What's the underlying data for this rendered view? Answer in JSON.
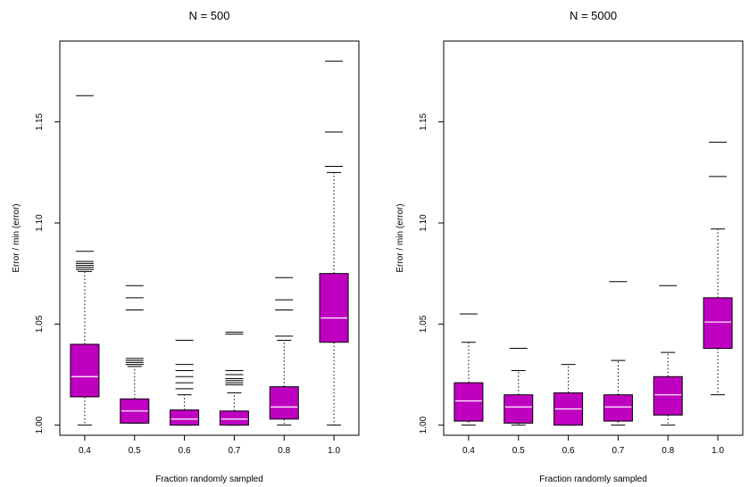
{
  "colors": {
    "box": "#c000c0",
    "median": "#ffffff",
    "stroke": "#000000"
  },
  "chart_data": [
    {
      "type": "boxplot",
      "title": "N = 500",
      "xlabel": "Fraction randomly sampled",
      "ylabel": "Error / min (error)",
      "ylim": [
        0.995,
        1.19
      ],
      "yticks": [
        1.0,
        1.05,
        1.1,
        1.15
      ],
      "ytick_labels": [
        "1.00",
        "1.05",
        "1.10",
        "1.15"
      ],
      "categories": [
        "0.4",
        "0.5",
        "0.6",
        "0.7",
        "0.8",
        "1.0"
      ],
      "boxes": [
        {
          "low": 1.0,
          "q1": 1.014,
          "median": 1.024,
          "q3": 1.04,
          "high": 1.076,
          "outliers": [
            1.077,
            1.078,
            1.079,
            1.08,
            1.081,
            1.086,
            1.163
          ]
        },
        {
          "low": 1.001,
          "q1": 1.001,
          "median": 1.007,
          "q3": 1.013,
          "high": 1.029,
          "outliers": [
            1.03,
            1.031,
            1.032,
            1.033,
            1.057,
            1.063,
            1.069
          ]
        },
        {
          "low": 1.0,
          "q1": 1.0,
          "median": 1.003,
          "q3": 1.0075,
          "high": 1.015,
          "outliers": [
            1.018,
            1.021,
            1.024,
            1.027,
            1.03,
            1.042
          ]
        },
        {
          "low": 1.0,
          "q1": 1.0,
          "median": 1.003,
          "q3": 1.007,
          "high": 1.016,
          "outliers": [
            1.02,
            1.021,
            1.022,
            1.023,
            1.025,
            1.027,
            1.045,
            1.046
          ]
        },
        {
          "low": 1.0,
          "q1": 1.003,
          "median": 1.009,
          "q3": 1.019,
          "high": 1.042,
          "outliers": [
            1.044,
            1.057,
            1.062,
            1.073
          ]
        },
        {
          "low": 1.0,
          "q1": 1.041,
          "median": 1.053,
          "q3": 1.075,
          "high": 1.125,
          "outliers": [
            1.128,
            1.145,
            1.18
          ]
        }
      ]
    },
    {
      "type": "boxplot",
      "title": "N = 5000",
      "xlabel": "Fraction randomly sampled",
      "ylabel": "Error / min (error)",
      "ylim": [
        0.995,
        1.19
      ],
      "yticks": [
        1.0,
        1.05,
        1.1,
        1.15
      ],
      "ytick_labels": [
        "1.00",
        "1.05",
        "1.10",
        "1.15"
      ],
      "categories": [
        "0.4",
        "0.5",
        "0.6",
        "0.7",
        "0.8",
        "1.0"
      ],
      "boxes": [
        {
          "low": 1.0,
          "q1": 1.002,
          "median": 1.012,
          "q3": 1.021,
          "high": 1.041,
          "outliers": [
            1.055
          ]
        },
        {
          "low": 1.0,
          "q1": 1.001,
          "median": 1.009,
          "q3": 1.015,
          "high": 1.027,
          "outliers": [
            1.038
          ]
        },
        {
          "low": 1.0,
          "q1": 1.0,
          "median": 1.008,
          "q3": 1.016,
          "high": 1.03,
          "outliers": []
        },
        {
          "low": 1.0,
          "q1": 1.002,
          "median": 1.009,
          "q3": 1.015,
          "high": 1.032,
          "outliers": [
            1.071
          ]
        },
        {
          "low": 1.0,
          "q1": 1.005,
          "median": 1.015,
          "q3": 1.024,
          "high": 1.036,
          "outliers": [
            1.069
          ]
        },
        {
          "low": 1.015,
          "q1": 1.038,
          "median": 1.051,
          "q3": 1.063,
          "high": 1.097,
          "outliers": [
            1.123,
            1.14
          ]
        }
      ]
    }
  ]
}
